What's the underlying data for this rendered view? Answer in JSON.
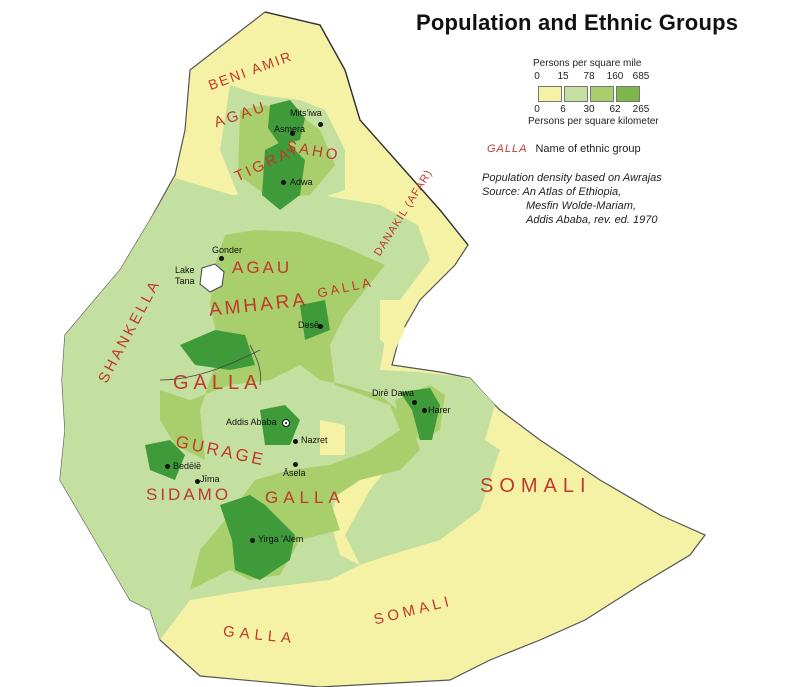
{
  "title": "Population and Ethnic Groups",
  "legend": {
    "caption_mile": "Persons per square mile",
    "caption_km": "Persons per square kilometer",
    "mile_ticks": [
      "0",
      "15",
      "78",
      "160",
      "685"
    ],
    "km_ticks": [
      "0",
      "6",
      "30",
      "62",
      "265"
    ],
    "density_colors": [
      "#f5f2a6",
      "#c4e0a0",
      "#a8cf6c",
      "#7db64a",
      "#3f9a3a"
    ],
    "ethnic_sample": "GALLA",
    "ethnic_sample_label": "Name of ethnic group"
  },
  "source": {
    "line1": "Population density based on Awrajas",
    "line2": "Source: An Atlas of Ethiopia,",
    "line3": "Mesfin Wolde-Mariam,",
    "line4": "Addis Ababa, rev. ed. 1970"
  },
  "ethnic_groups": {
    "beni_amir": "BENI AMIR",
    "agau_north": "AGAU",
    "saho": "SAHO",
    "tigrai": "TIGRAI",
    "danakil": "DANAKIL (AFAR)",
    "shankella": "SHANKELLA",
    "agau_central": "AGAU",
    "galla_ne": "GALLA",
    "amhara": "AMHARA",
    "galla_central": "GALLA",
    "gurage": "GURAGE",
    "sidamo": "SIDAMO",
    "galla_south_central": "GALLA",
    "somali_east": "SOMALI",
    "somali_south": "SOMALI",
    "galla_south": "GALLA"
  },
  "cities": {
    "mitsiwa": "Mits'iwa",
    "asmera": "Asmera",
    "adwa": "Adwa",
    "gonder": "Gonder",
    "lake_tana": "Lake Tana",
    "dese": "Desē",
    "dire_dawa": "Dirē Dawa",
    "harer": "Harer",
    "addis_ababa": "Addis Ababa",
    "nazret": "Nazret",
    "bedele": "Bedēlē",
    "jima": "Jīma",
    "asela": "Āsela",
    "yirga_alem": "Yirga 'Alem"
  }
}
